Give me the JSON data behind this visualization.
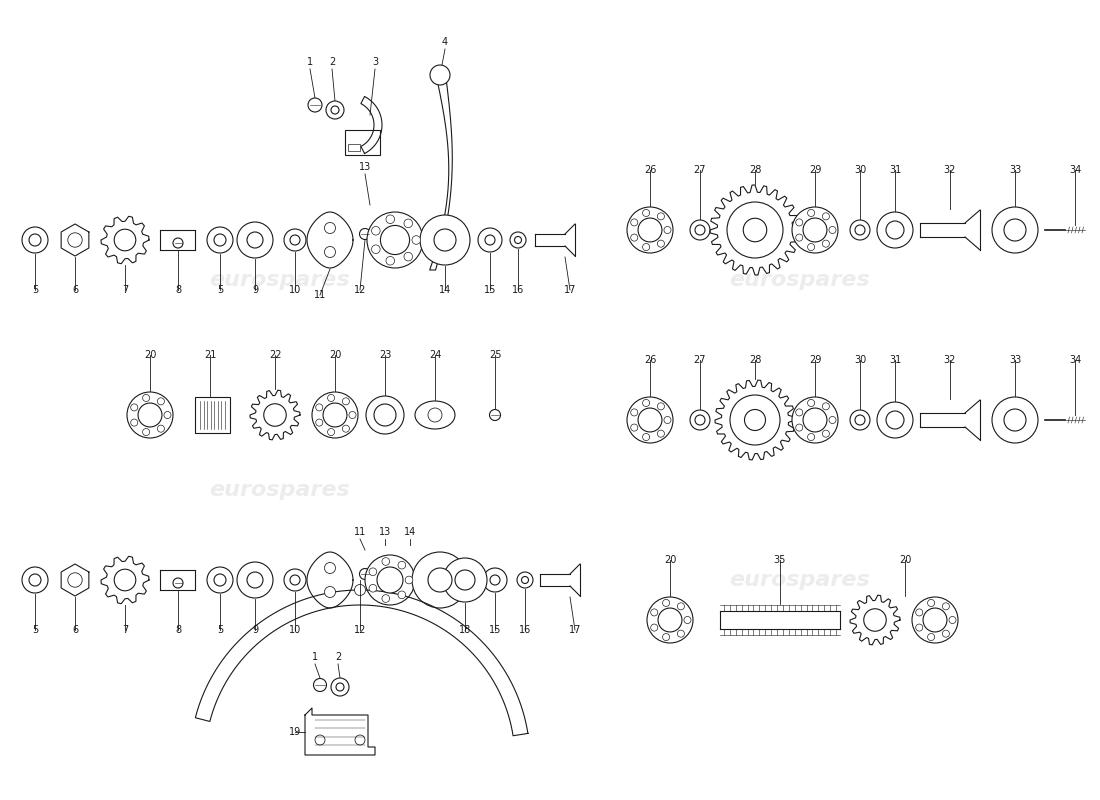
{
  "bg_color": "#ffffff",
  "line_color": "#1a1a1a",
  "watermark_color": "#cccccc",
  "watermark_text": "eurospares"
}
